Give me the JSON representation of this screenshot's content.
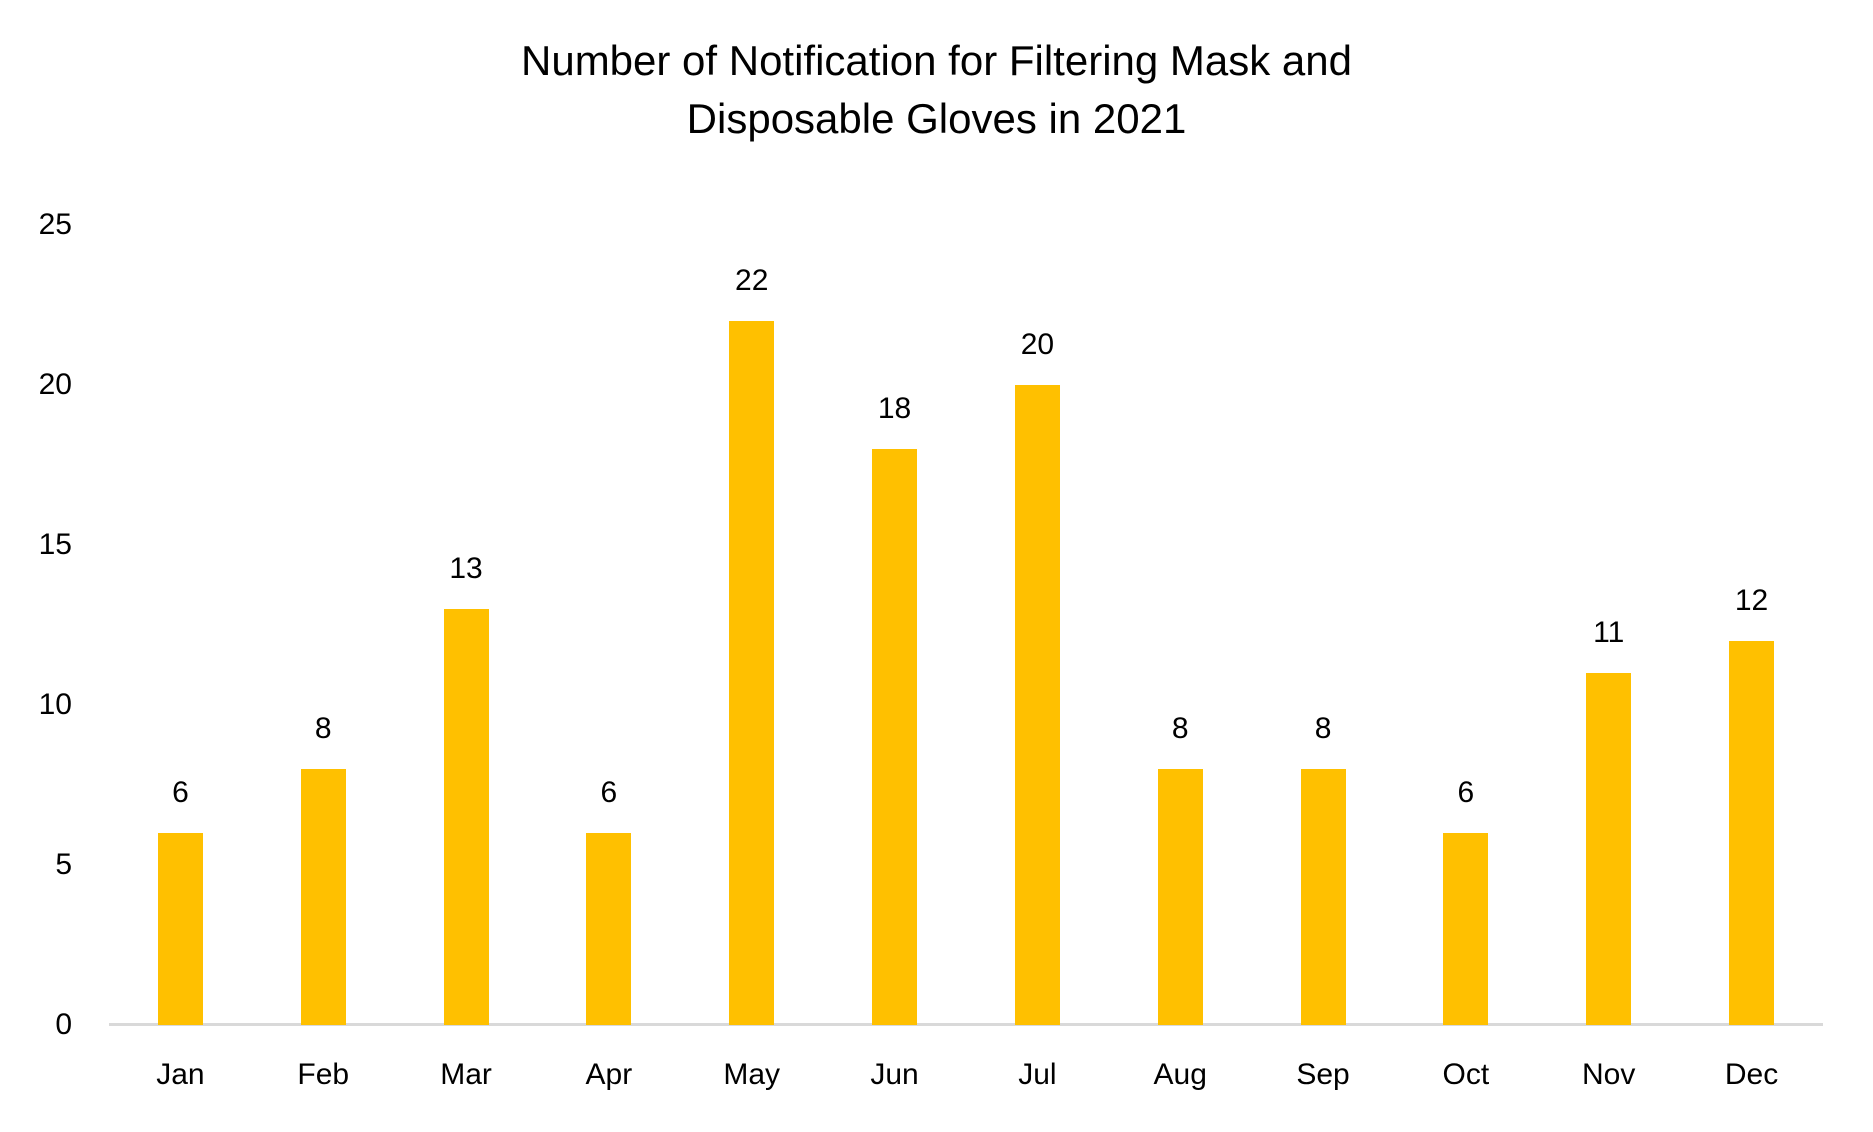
{
  "chart_data": {
    "type": "bar",
    "title": "Number of Notification for Filtering Mask and Disposable Gloves in 2021",
    "title_lines": [
      "Number of Notification for Filtering Mask and",
      "Disposable Gloves in 2021"
    ],
    "categories": [
      "Jan",
      "Feb",
      "Mar",
      "Apr",
      "May",
      "Jun",
      "Jul",
      "Aug",
      "Sep",
      "Oct",
      "Nov",
      "Dec"
    ],
    "values": [
      6,
      8,
      13,
      6,
      22,
      18,
      20,
      8,
      8,
      6,
      11,
      12
    ],
    "xlabel": "",
    "ylabel": "",
    "ylim": [
      0,
      25
    ],
    "yticks": [
      0,
      5,
      10,
      15,
      20,
      25
    ],
    "grid": false,
    "legend": false,
    "data_labels": true,
    "colors": {
      "bar": "#FFC000",
      "axis_line": "#D9D9D9",
      "text": "#000000"
    }
  }
}
